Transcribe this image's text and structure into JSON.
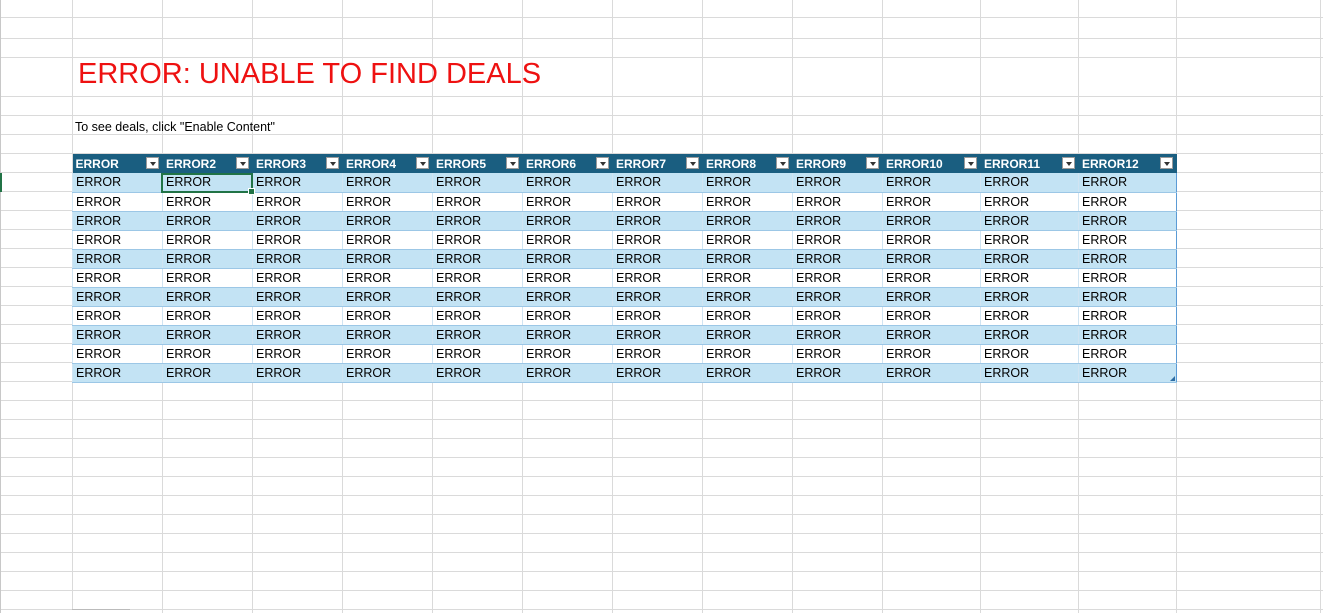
{
  "sheet": {
    "title": "ERROR: UNABLE TO FIND DEALS",
    "subtitle": "To see deals, click \"Enable Content\"",
    "title_color": "#ee1111",
    "header_color": "#1a5e80",
    "band_color": "#c3e3f4",
    "selection_color": "#217346"
  },
  "table": {
    "headers": [
      "ERROR",
      "ERROR2",
      "ERROR3",
      "ERROR4",
      "ERROR5",
      "ERROR6",
      "ERROR7",
      "ERROR8",
      "ERROR9",
      "ERROR10",
      "ERROR11",
      "ERROR12"
    ],
    "rows": [
      [
        "ERROR",
        "ERROR",
        "ERROR",
        "ERROR",
        "ERROR",
        "ERROR",
        "ERROR",
        "ERROR",
        "ERROR",
        "ERROR",
        "ERROR",
        "ERROR"
      ],
      [
        "ERROR",
        "ERROR",
        "ERROR",
        "ERROR",
        "ERROR",
        "ERROR",
        "ERROR",
        "ERROR",
        "ERROR",
        "ERROR",
        "ERROR",
        "ERROR"
      ],
      [
        "ERROR",
        "ERROR",
        "ERROR",
        "ERROR",
        "ERROR",
        "ERROR",
        "ERROR",
        "ERROR",
        "ERROR",
        "ERROR",
        "ERROR",
        "ERROR"
      ],
      [
        "ERROR",
        "ERROR",
        "ERROR",
        "ERROR",
        "ERROR",
        "ERROR",
        "ERROR",
        "ERROR",
        "ERROR",
        "ERROR",
        "ERROR",
        "ERROR"
      ],
      [
        "ERROR",
        "ERROR",
        "ERROR",
        "ERROR",
        "ERROR",
        "ERROR",
        "ERROR",
        "ERROR",
        "ERROR",
        "ERROR",
        "ERROR",
        "ERROR"
      ],
      [
        "ERROR",
        "ERROR",
        "ERROR",
        "ERROR",
        "ERROR",
        "ERROR",
        "ERROR",
        "ERROR",
        "ERROR",
        "ERROR",
        "ERROR",
        "ERROR"
      ],
      [
        "ERROR",
        "ERROR",
        "ERROR",
        "ERROR",
        "ERROR",
        "ERROR",
        "ERROR",
        "ERROR",
        "ERROR",
        "ERROR",
        "ERROR",
        "ERROR"
      ],
      [
        "ERROR",
        "ERROR",
        "ERROR",
        "ERROR",
        "ERROR",
        "ERROR",
        "ERROR",
        "ERROR",
        "ERROR",
        "ERROR",
        "ERROR",
        "ERROR"
      ],
      [
        "ERROR",
        "ERROR",
        "ERROR",
        "ERROR",
        "ERROR",
        "ERROR",
        "ERROR",
        "ERROR",
        "ERROR",
        "ERROR",
        "ERROR",
        "ERROR"
      ],
      [
        "ERROR",
        "ERROR",
        "ERROR",
        "ERROR",
        "ERROR",
        "ERROR",
        "ERROR",
        "ERROR",
        "ERROR",
        "ERROR",
        "ERROR",
        "ERROR"
      ],
      [
        "ERROR",
        "ERROR",
        "ERROR",
        "ERROR",
        "ERROR",
        "ERROR",
        "ERROR",
        "ERROR",
        "ERROR",
        "ERROR",
        "ERROR",
        "ERROR"
      ]
    ],
    "filter_icon": "filter-dropdown-icon"
  }
}
